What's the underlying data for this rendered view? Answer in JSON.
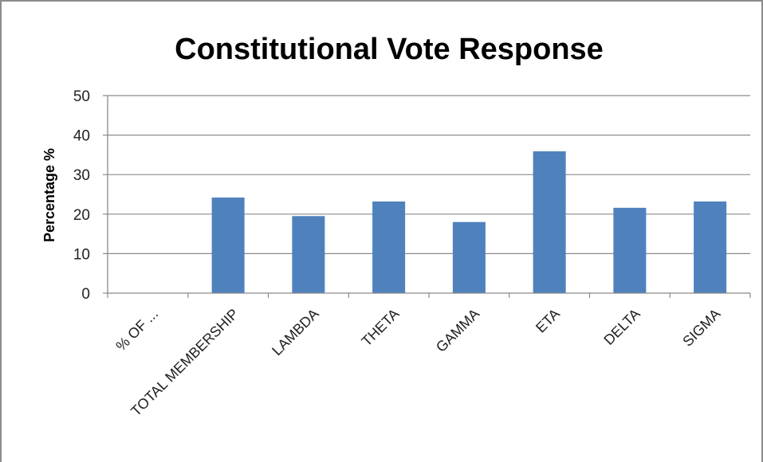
{
  "chart_data": {
    "type": "bar",
    "title": "Constitutional Vote Response",
    "xlabel": "",
    "ylabel": "Percentage %",
    "ylim": [
      0,
      50
    ],
    "yticks": [
      0,
      10,
      20,
      30,
      40,
      50
    ],
    "grid": true,
    "legend": "none",
    "bar_color": "#4f81bd",
    "categories": [
      "% OF ...",
      "TOTAL MEMBERSHIP",
      "LAMBDA",
      "THETA",
      "GAMMA",
      "ETA",
      "DELTA",
      "SIGMA"
    ],
    "values": [
      0,
      24.2,
      19.5,
      23.2,
      18,
      35.9,
      21.6,
      23.2
    ]
  }
}
